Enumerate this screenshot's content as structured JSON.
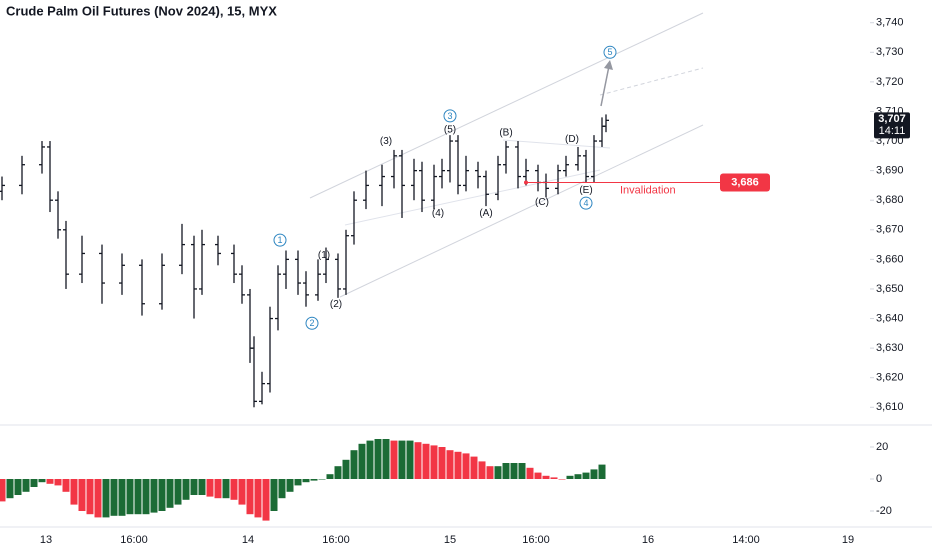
{
  "chart_data": [
    {
      "type": "ohlc",
      "title": "Crude Palm Oil Futures (Nov 2024), 15, MYX",
      "color": "#131722",
      "xlim": [
        -0.5,
        217
      ],
      "ylim": [
        3603,
        3747
      ],
      "yticks": [
        {
          "value": 3610,
          "label": "3,610"
        },
        {
          "value": 3620,
          "label": "3,620"
        },
        {
          "value": 3630,
          "label": "3,630"
        },
        {
          "value": 3640,
          "label": "3,640"
        },
        {
          "value": 3650,
          "label": "3,650"
        },
        {
          "value": 3660,
          "label": "3,660"
        },
        {
          "value": 3670,
          "label": "3,670"
        },
        {
          "value": 3680,
          "label": "3,680"
        },
        {
          "value": 3690,
          "label": "3,690"
        },
        {
          "value": 3700,
          "label": "3,700"
        },
        {
          "value": 3710,
          "label": "3,710"
        },
        {
          "value": 3720,
          "label": "3,720"
        },
        {
          "value": 3730,
          "label": "3,730"
        },
        {
          "value": 3740,
          "label": "3,740"
        }
      ],
      "x": [
        0,
        5,
        10,
        12,
        14,
        16,
        20,
        25,
        30,
        35,
        40,
        45,
        48,
        50,
        54,
        58,
        60,
        62,
        63,
        65,
        67,
        69,
        71,
        74,
        76,
        79,
        81,
        84,
        86,
        88,
        91,
        95,
        98,
        100,
        103,
        105,
        108,
        110,
        112,
        114,
        116,
        119,
        121,
        124,
        126,
        129,
        131,
        134,
        136,
        139,
        141,
        144,
        146,
        148,
        150,
        151
      ],
      "open": [
        3683,
        3685,
        3692,
        3698,
        3680,
        3670,
        3655,
        3662,
        3652,
        3658,
        3645,
        3658,
        3665,
        3650,
        3665,
        3662,
        3655,
        3648,
        3630,
        3612,
        3618,
        3640,
        3655,
        3660,
        3652,
        3648,
        3655,
        3660,
        3650,
        3668,
        3680,
        3685,
        3688,
        3695,
        3685,
        3690,
        3680,
        3688,
        3690,
        3700,
        3685,
        3690,
        3688,
        3682,
        3692,
        3698,
        3688,
        3690,
        3686,
        3684,
        3690,
        3692,
        3695,
        3688,
        3700,
        3705
      ],
      "high": [
        3688,
        3695,
        3700,
        3700,
        3683,
        3673,
        3668,
        3665,
        3662,
        3660,
        3662,
        3672,
        3668,
        3670,
        3668,
        3665,
        3658,
        3650,
        3634,
        3622,
        3644,
        3658,
        3663,
        3663,
        3656,
        3660,
        3664,
        3662,
        3670,
        3683,
        3690,
        3692,
        3697,
        3697,
        3694,
        3693,
        3692,
        3694,
        3702,
        3702,
        3695,
        3693,
        3690,
        3695,
        3700,
        3700,
        3694,
        3692,
        3689,
        3692,
        3695,
        3698,
        3697,
        3702,
        3708,
        3709
      ],
      "low": [
        3680,
        3682,
        3689,
        3676,
        3667,
        3650,
        3652,
        3645,
        3648,
        3641,
        3643,
        3655,
        3640,
        3648,
        3658,
        3652,
        3645,
        3625,
        3610,
        3611,
        3615,
        3636,
        3650,
        3648,
        3644,
        3646,
        3652,
        3647,
        3648,
        3665,
        3677,
        3678,
        3684,
        3674,
        3680,
        3676,
        3677,
        3684,
        3686,
        3682,
        3683,
        3684,
        3678,
        3680,
        3689,
        3684,
        3685,
        3683,
        3681,
        3682,
        3688,
        3690,
        3686,
        3686,
        3698,
        3703
      ],
      "close": [
        3685,
        3692,
        3698,
        3680,
        3670,
        3655,
        3662,
        3652,
        3658,
        3645,
        3658,
        3665,
        3650,
        3665,
        3662,
        3655,
        3648,
        3630,
        3612,
        3618,
        3640,
        3655,
        3660,
        3652,
        3648,
        3655,
        3660,
        3650,
        3668,
        3680,
        3685,
        3688,
        3695,
        3685,
        3690,
        3680,
        3688,
        3690,
        3700,
        3685,
        3690,
        3688,
        3682,
        3692,
        3698,
        3688,
        3690,
        3686,
        3684,
        3690,
        3692,
        3695,
        3688,
        3700,
        3705,
        3707
      ],
      "last_price": {
        "value": 3707,
        "label": "3,707",
        "countdown": "14:11"
      },
      "invalidation": {
        "value": 3686,
        "label": "3,686",
        "text": "Invalidation"
      },
      "annotations": [
        {
          "text": "1",
          "circled": true,
          "x": 69.5,
          "y": 3666.5
        },
        {
          "text": "2",
          "circled": true,
          "x": 77.5,
          "y": 3638.4
        },
        {
          "text": "(1)",
          "circled": false,
          "x": 80.5,
          "y": 3661.5
        },
        {
          "text": "(2)",
          "circled": false,
          "x": 83.5,
          "y": 3645
        },
        {
          "text": "(3)",
          "circled": false,
          "x": 96,
          "y": 3700
        },
        {
          "text": "3",
          "circled": true,
          "x": 112,
          "y": 3708.5
        },
        {
          "text": "(5)",
          "circled": false,
          "x": 112,
          "y": 3704
        },
        {
          "text": "(4)",
          "circled": false,
          "x": 109,
          "y": 3675.7
        },
        {
          "text": "(A)",
          "circled": false,
          "x": 121,
          "y": 3675.7
        },
        {
          "text": "(B)",
          "circled": false,
          "x": 126,
          "y": 3703
        },
        {
          "text": "(C)",
          "circled": false,
          "x": 135,
          "y": 3679.4
        },
        {
          "text": "(D)",
          "circled": false,
          "x": 142.5,
          "y": 3700.7
        },
        {
          "text": "(E)",
          "circled": false,
          "x": 146,
          "y": 3683.5
        },
        {
          "text": "4",
          "circled": true,
          "x": 146,
          "y": 3679
        },
        {
          "text": "5",
          "circled": true,
          "x": 152,
          "y": 3730
        }
      ]
    },
    {
      "type": "bar",
      "up_color": "#1b6b35",
      "down_color": "#f23645",
      "xlim": [
        -0.5,
        217
      ],
      "ylim": [
        -30,
        30
      ],
      "yticks": [
        -20,
        0,
        20
      ],
      "xticks": [
        {
          "value": 11,
          "label": "13"
        },
        {
          "value": 33,
          "label": "16:00"
        },
        {
          "value": 61.5,
          "label": "14"
        },
        {
          "value": 83.5,
          "label": "16:00"
        },
        {
          "value": 112,
          "label": "15"
        },
        {
          "value": 133.5,
          "label": "16:00"
        },
        {
          "value": 161.5,
          "label": "16"
        },
        {
          "value": 186,
          "label": "14:00"
        },
        {
          "value": 211.5,
          "label": "19"
        }
      ],
      "x": [
        0,
        2,
        4,
        6,
        8,
        10,
        12,
        14,
        16,
        18,
        20,
        22,
        24,
        26,
        28,
        30,
        32,
        34,
        36,
        38,
        40,
        42,
        44,
        46,
        48,
        50,
        52,
        54,
        56,
        58,
        60,
        62,
        64,
        66,
        68,
        70,
        72,
        74,
        76,
        78,
        80,
        82,
        84,
        86,
        88,
        90,
        92,
        94,
        96,
        98,
        100,
        102,
        104,
        106,
        108,
        110,
        112,
        114,
        116,
        118,
        120,
        122,
        124,
        126,
        128,
        130,
        132,
        134,
        136,
        138,
        140,
        142,
        144,
        146,
        148,
        150
      ],
      "values": [
        -14,
        -12,
        -10,
        -8,
        -5,
        -2,
        -3,
        -4,
        -8,
        -16,
        -20,
        -22,
        -24,
        -24,
        -23,
        -23,
        -22,
        -22,
        -22,
        -21,
        -20,
        -18,
        -16,
        -13,
        -10,
        -10,
        -11,
        -12,
        -12,
        -13,
        -16,
        -22,
        -24,
        -26,
        -20,
        -12,
        -8,
        -4,
        -2,
        -1,
        0,
        3,
        8,
        12,
        18,
        22,
        24,
        25,
        25,
        24,
        24,
        24,
        23,
        22,
        21,
        20,
        18,
        17,
        16,
        14,
        11,
        8,
        8,
        10,
        10,
        10,
        7,
        4,
        2,
        1,
        0,
        2,
        3,
        4,
        6,
        9
      ]
    }
  ]
}
